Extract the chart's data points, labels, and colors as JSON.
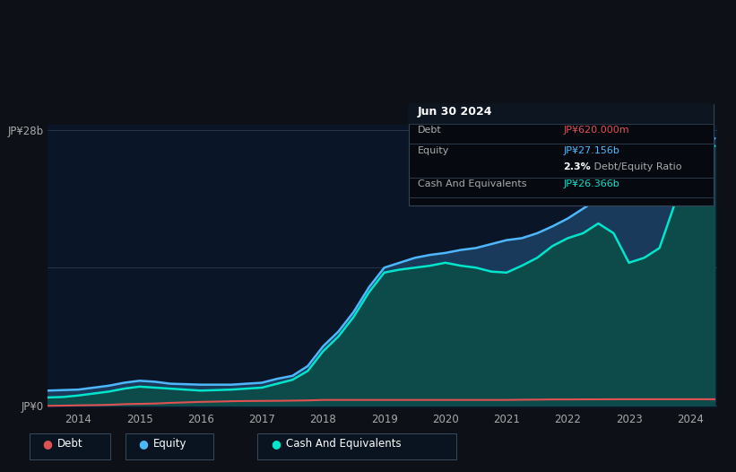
{
  "bg_color": "#0d1117",
  "plot_bg_color": "#0a1628",
  "debt_color": "#e05252",
  "equity_color": "#4db8ff",
  "cash_color": "#00e5cc",
  "equity_fill_color": "#1a3a5c",
  "cash_fill_color": "#0d4a4a",
  "ylabel_top": "JP¥28b",
  "ylabel_bottom": "JP¥0",
  "x_labels": [
    "2014",
    "2015",
    "2016",
    "2017",
    "2018",
    "2019",
    "2020",
    "2021",
    "2022",
    "2023",
    "2024"
  ],
  "legend_labels": [
    "Debt",
    "Equity",
    "Cash And Equivalents"
  ],
  "title_box_text": "Jun 30 2024",
  "tooltip_debt_label": "Debt",
  "tooltip_debt_value": "JP¥620.000m",
  "tooltip_equity_label": "Equity",
  "tooltip_equity_value": "JP¥27.156b",
  "tooltip_cash_label": "Cash And Equivalents",
  "tooltip_cash_value": "JP¥26.366b",
  "years": [
    2013.5,
    2013.75,
    2014.0,
    2014.25,
    2014.5,
    2014.75,
    2015.0,
    2015.25,
    2015.5,
    2015.75,
    2016.0,
    2016.25,
    2016.5,
    2016.75,
    2017.0,
    2017.25,
    2017.5,
    2017.75,
    2018.0,
    2018.25,
    2018.5,
    2018.75,
    2019.0,
    2019.25,
    2019.5,
    2019.75,
    2020.0,
    2020.25,
    2020.5,
    2020.75,
    2021.0,
    2021.25,
    2021.5,
    2021.75,
    2022.0,
    2022.25,
    2022.5,
    2022.75,
    2023.0,
    2023.25,
    2023.5,
    2023.75,
    2024.0,
    2024.25,
    2024.4
  ],
  "equity": [
    1.5,
    1.55,
    1.6,
    1.8,
    2.0,
    2.3,
    2.5,
    2.4,
    2.2,
    2.15,
    2.1,
    2.1,
    2.1,
    2.2,
    2.3,
    2.7,
    3.0,
    4.0,
    6.0,
    7.5,
    9.5,
    12.0,
    14.0,
    14.5,
    15.0,
    15.3,
    15.5,
    15.8,
    16.0,
    16.4,
    16.8,
    17.0,
    17.5,
    18.2,
    19.0,
    20.0,
    21.0,
    21.8,
    22.5,
    23.5,
    24.5,
    25.5,
    27.0,
    27.5,
    27.156
  ],
  "cash": [
    0.8,
    0.85,
    1.0,
    1.2,
    1.4,
    1.7,
    1.9,
    1.8,
    1.7,
    1.6,
    1.5,
    1.55,
    1.6,
    1.7,
    1.8,
    2.2,
    2.6,
    3.5,
    5.5,
    7.0,
    9.0,
    11.5,
    13.5,
    13.8,
    14.0,
    14.2,
    14.5,
    14.2,
    14.0,
    13.6,
    13.5,
    14.2,
    15.0,
    16.2,
    17.0,
    17.5,
    18.5,
    17.5,
    14.5,
    15.0,
    16.0,
    20.5,
    25.5,
    25.8,
    26.366
  ],
  "debt": [
    -0.05,
    -0.03,
    0.0,
    0.02,
    0.05,
    0.12,
    0.15,
    0.18,
    0.25,
    0.3,
    0.35,
    0.38,
    0.42,
    0.44,
    0.45,
    0.46,
    0.48,
    0.5,
    0.55,
    0.55,
    0.55,
    0.55,
    0.55,
    0.55,
    0.55,
    0.55,
    0.55,
    0.55,
    0.55,
    0.55,
    0.55,
    0.57,
    0.58,
    0.6,
    0.6,
    0.61,
    0.61,
    0.62,
    0.62,
    0.62,
    0.62,
    0.62,
    0.62,
    0.62,
    0.62
  ]
}
